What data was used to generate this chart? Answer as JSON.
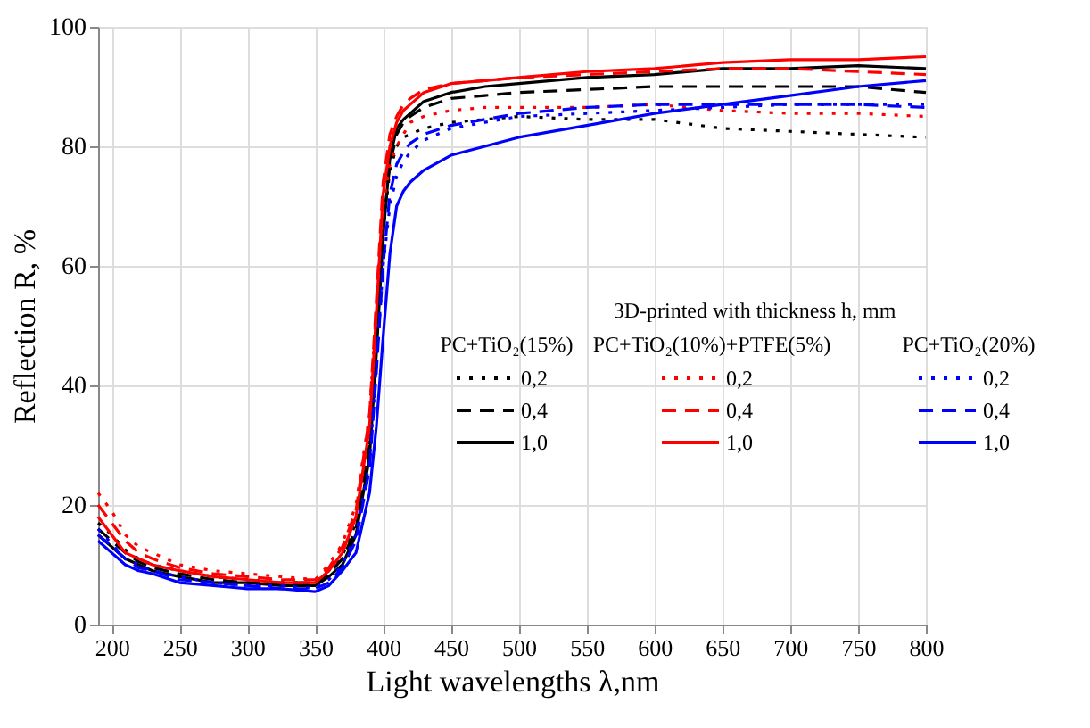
{
  "chart_data": {
    "type": "line",
    "xlabel": "Light wavelengths λ,nm",
    "ylabel": "Reflection R, %",
    "legend_title": "3D-printed with thickness h, mm",
    "annotations": [
      "PC+TiO₂(15%)",
      "PC+TiO₂(10%)+PTFE(5%)",
      "PC+TiO₂(20%)"
    ],
    "x": [
      190,
      200,
      210,
      220,
      230,
      250,
      275,
      300,
      325,
      350,
      360,
      370,
      380,
      390,
      395,
      400,
      405,
      410,
      415,
      420,
      430,
      450,
      475,
      500,
      550,
      600,
      650,
      700,
      750,
      800
    ],
    "series": [
      {
        "name": "0,2",
        "color": "#000000",
        "line_style": "dotted",
        "values": [
          17,
          15,
          12.5,
          11,
          10,
          9,
          8,
          7.5,
          7,
          7,
          9,
          11.5,
          17,
          31,
          48,
          66,
          76,
          80,
          81.5,
          82,
          83,
          84,
          84.5,
          85,
          84.5,
          84.5,
          83,
          82.5,
          82,
          81.5
        ]
      },
      {
        "name": "0,4",
        "color": "#000000",
        "line_style": "dashed",
        "values": [
          16,
          14,
          12,
          10.5,
          9.5,
          8.5,
          7.5,
          7,
          7,
          7,
          8.5,
          11,
          16,
          30,
          47,
          66,
          77,
          82,
          84,
          85,
          86.5,
          88,
          88.5,
          89,
          89.5,
          90,
          90,
          90,
          90,
          89
        ]
      },
      {
        "name": "1,0",
        "color": "#000000",
        "line_style": "solid",
        "values": [
          15,
          13,
          11,
          10,
          9,
          8,
          7,
          7,
          6.5,
          6.5,
          8,
          10,
          15,
          28,
          45,
          65,
          78,
          83,
          84.5,
          85.5,
          87.5,
          89,
          90,
          90.5,
          91.5,
          92,
          93,
          93,
          93.5,
          93
        ]
      },
      {
        "name": "0,2",
        "color": "#ff0000",
        "line_style": "dotted",
        "values": [
          22,
          19,
          15,
          13,
          12,
          10,
          9,
          8.5,
          8,
          7.5,
          10,
          13.5,
          20,
          35,
          53,
          70,
          77,
          80,
          82,
          84,
          85,
          86,
          86.5,
          86.5,
          86.5,
          87,
          86,
          85.5,
          85.5,
          85
        ]
      },
      {
        "name": "0,4",
        "color": "#ff0000",
        "line_style": "dashed",
        "values": [
          20,
          17,
          14,
          12,
          11,
          9.5,
          8.5,
          8,
          7.5,
          7.5,
          9.5,
          13,
          19,
          35,
          54,
          74,
          82,
          85,
          87,
          88,
          89.5,
          90.5,
          91,
          91.5,
          92,
          92.5,
          93,
          93,
          92.5,
          92
        ]
      },
      {
        "name": "1,0",
        "color": "#ff0000",
        "line_style": "solid",
        "values": [
          18,
          15,
          12,
          11,
          10,
          9,
          8,
          7.5,
          7,
          7,
          9,
          12,
          18,
          33,
          52,
          72,
          80,
          84,
          86,
          87,
          89,
          90.5,
          91,
          91.5,
          92.5,
          93,
          94,
          94.5,
          94.5,
          95
        ]
      },
      {
        "name": "0,2",
        "color": "#0000ff",
        "line_style": "dotted",
        "values": [
          16,
          13.5,
          11,
          10,
          9,
          8,
          7,
          6.5,
          6.5,
          6,
          7.5,
          10,
          15,
          27,
          43,
          60,
          70,
          75,
          77.5,
          79,
          81,
          83,
          84,
          85,
          85.5,
          86,
          86.5,
          87,
          87,
          87
        ]
      },
      {
        "name": "0,4",
        "color": "#0000ff",
        "line_style": "dashed",
        "values": [
          15,
          13,
          11,
          9.5,
          9,
          7.5,
          7,
          6.5,
          6,
          6,
          7,
          9.5,
          14,
          26,
          42,
          60,
          72,
          77,
          79,
          80.5,
          82,
          83.5,
          84.5,
          85.5,
          86.5,
          87,
          87,
          87,
          87,
          86.5
        ]
      },
      {
        "name": "1,0",
        "color": "#0000ff",
        "line_style": "solid",
        "values": [
          14,
          12,
          10,
          9,
          8.5,
          7,
          6.5,
          6,
          6,
          5.5,
          6.5,
          9,
          12,
          22,
          33,
          48,
          62,
          70,
          72.5,
          74,
          76,
          78.5,
          80,
          81.5,
          83.5,
          85.5,
          87,
          88.5,
          90,
          91
        ]
      }
    ],
    "xlim": [
      190,
      800
    ],
    "xticks": [
      200,
      250,
      300,
      350,
      400,
      450,
      500,
      550,
      600,
      650,
      700,
      750,
      800
    ],
    "ylim": [
      0,
      100
    ],
    "yticks": [
      0,
      20,
      40,
      60,
      80,
      100
    ],
    "grid": true,
    "legend": "right"
  }
}
